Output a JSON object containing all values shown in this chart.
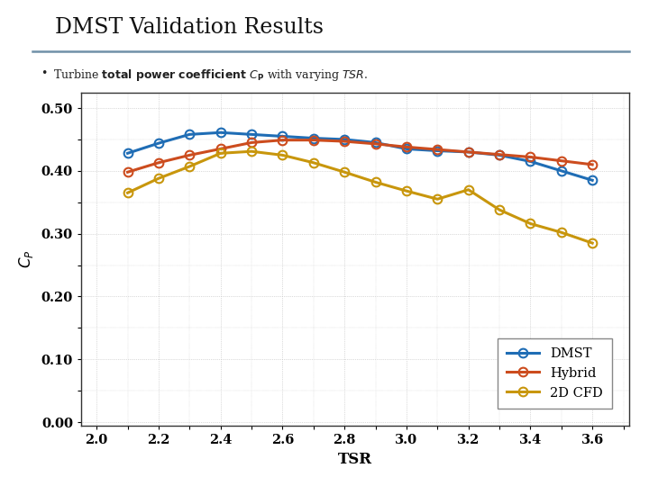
{
  "title": "DMST Validation Results",
  "xlabel": "TSR",
  "xlim": [
    1.95,
    3.72
  ],
  "ylim": [
    -0.005,
    0.525
  ],
  "xticks": [
    2.0,
    2.2,
    2.4,
    2.6,
    2.8,
    3.0,
    3.2,
    3.4,
    3.6
  ],
  "yticks": [
    0.0,
    0.1,
    0.2,
    0.3,
    0.4,
    0.5
  ],
  "dmst_x": [
    2.1,
    2.2,
    2.3,
    2.4,
    2.5,
    2.6,
    2.7,
    2.8,
    2.9,
    3.0,
    3.1,
    3.2,
    3.3,
    3.4,
    3.5,
    3.6
  ],
  "dmst_y": [
    0.428,
    0.444,
    0.458,
    0.461,
    0.458,
    0.455,
    0.452,
    0.45,
    0.445,
    0.435,
    0.432,
    0.43,
    0.425,
    0.415,
    0.4,
    0.385
  ],
  "hybrid_x": [
    2.1,
    2.2,
    2.3,
    2.4,
    2.5,
    2.6,
    2.7,
    2.8,
    2.9,
    3.0,
    3.1,
    3.2,
    3.3,
    3.4,
    3.5,
    3.6
  ],
  "hybrid_y": [
    0.398,
    0.413,
    0.425,
    0.435,
    0.445,
    0.449,
    0.449,
    0.447,
    0.443,
    0.438,
    0.434,
    0.43,
    0.426,
    0.422,
    0.416,
    0.41
  ],
  "cfd_x": [
    2.1,
    2.2,
    2.3,
    2.4,
    2.5,
    2.6,
    2.7,
    2.8,
    2.9,
    3.0,
    3.1,
    3.2,
    3.3,
    3.4,
    3.5,
    3.6
  ],
  "cfd_y": [
    0.365,
    0.388,
    0.407,
    0.428,
    0.431,
    0.425,
    0.413,
    0.398,
    0.382,
    0.368,
    0.355,
    0.37,
    0.338,
    0.316,
    0.302,
    0.285
  ],
  "dmst_color": "#1f6db5",
  "hybrid_color": "#cc4c1e",
  "cfd_color": "#c8960c",
  "bg_color": "#ffffff",
  "grid_color": "#bbbbbb",
  "title_bar_color": "#7090a8",
  "line_width": 2.2,
  "marker_size": 7,
  "legend_labels": [
    "DMST",
    "Hybrid",
    "2D CFD"
  ]
}
